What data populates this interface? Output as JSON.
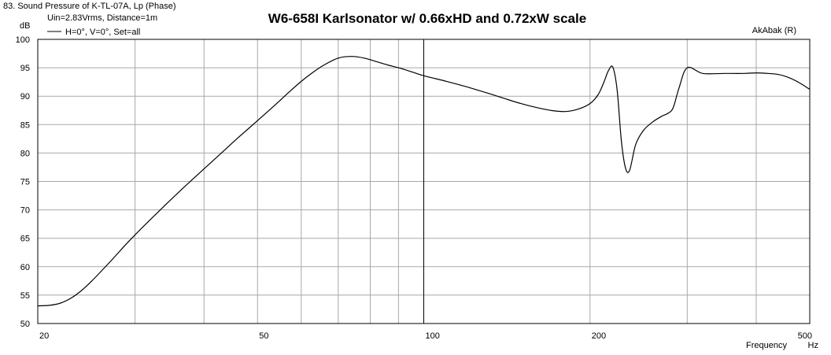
{
  "header": {
    "chart_id_text": "83. Sound Pressure of K-TL-07A, Lp (Phase)",
    "conditions_text": "Uin=2.83Vrms, Distance=1m",
    "legend_text": "H=0°, V=0°, Set=all",
    "brand_text": "AkAbak (R)",
    "y_unit_text": "dB"
  },
  "chart_data": {
    "type": "line",
    "title": "W6-658I Karlsonator w/ 0.66xHD and 0.72xW scale",
    "xlabel": "Frequency",
    "x_unit": "Hz",
    "ylabel": "dB",
    "x_scale": "log",
    "xlim": [
      20,
      500
    ],
    "ylim": [
      50,
      100
    ],
    "grid": true,
    "x_tick_labels": [
      "20",
      "50",
      "100",
      "200",
      "500"
    ],
    "x_tick_values": [
      20,
      50,
      100,
      200,
      500
    ],
    "y_tick_labels": [
      "100",
      "95",
      "90",
      "85",
      "80",
      "75",
      "70",
      "65",
      "60",
      "55",
      "50"
    ],
    "y_tick_values": [
      100,
      95,
      90,
      85,
      80,
      75,
      70,
      65,
      60,
      55,
      50
    ],
    "series": [
      {
        "name": "H=0°, V=0°, Set=all",
        "color": "#000000",
        "x": [
          20,
          21,
          22,
          23,
          24,
          25,
          27,
          29,
          31,
          34,
          37,
          40,
          43,
          46,
          50,
          54,
          57,
          60,
          63,
          66,
          70,
          74,
          78,
          82,
          86,
          90,
          95,
          100,
          110,
          120,
          130,
          140,
          150,
          160,
          170,
          180,
          190,
          200,
          207,
          212,
          216,
          220,
          224,
          228,
          232,
          236,
          242,
          250,
          260,
          270,
          277,
          283,
          290,
          300,
          320,
          350,
          380,
          400,
          420,
          440,
          460,
          480,
          500
        ],
        "y": [
          53.1,
          53.2,
          53.6,
          54.5,
          55.8,
          57.4,
          60.8,
          64.1,
          67.0,
          70.8,
          74.2,
          77.2,
          80.0,
          82.6,
          85.7,
          88.6,
          90.7,
          92.6,
          94.2,
          95.5,
          96.7,
          97.0,
          96.7,
          96.1,
          95.5,
          95.0,
          94.3,
          93.6,
          92.6,
          91.6,
          90.6,
          89.6,
          88.7,
          88.0,
          87.5,
          87.3,
          87.7,
          88.7,
          90.3,
          92.5,
          94.5,
          95.1,
          91.0,
          82.0,
          77.3,
          77.0,
          81.5,
          84.0,
          85.5,
          86.5,
          87.0,
          88.0,
          91.5,
          95.0,
          94.0,
          94.0,
          94.0,
          94.1,
          94.0,
          93.8,
          93.2,
          92.3,
          91.2
        ]
      }
    ]
  }
}
